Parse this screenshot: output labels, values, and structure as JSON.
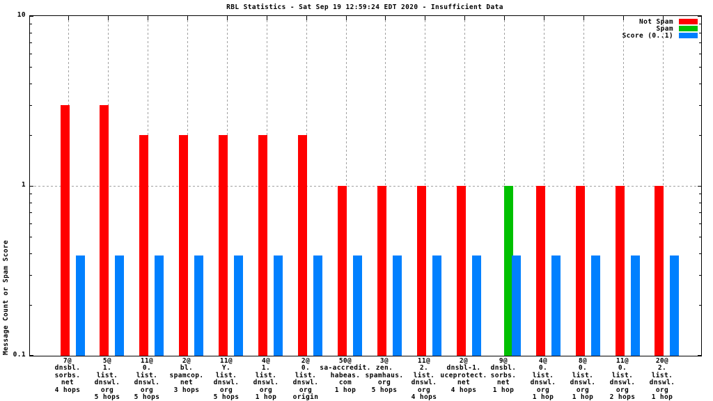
{
  "title": "RBL Statistics - Sat Sep 19 12:59:24 EDT 2020 - Insufficient Data",
  "status_note": "Insufficient Data",
  "y_axis": {
    "label": "Message Count or Spam Score",
    "scale": "log",
    "tick_labels": [
      {
        "label": "10",
        "value": 10
      },
      {
        "label": "1",
        "value": 1
      },
      {
        "label": "0.1",
        "value": 0.1
      }
    ]
  },
  "legend": {
    "position": "top-right-inside",
    "entries": [
      {
        "label": "Not Spam",
        "color": "#ff0000"
      },
      {
        "label": "Spam",
        "color": "#00c000"
      },
      {
        "label": "Score (0..1)",
        "color": "#0080ff"
      }
    ]
  },
  "colors": {
    "not_spam": "#ff0000",
    "spam": "#00c000",
    "score": "#0080ff",
    "grid": "#a0a0a0",
    "axis": "#000000",
    "background": "#ffffff"
  },
  "chart_data": {
    "type": "bar",
    "title": "RBL Statistics - Sat Sep 19 12:59:24 EDT 2020 - Insufficient Data",
    "xlabel": "",
    "ylabel": "Message Count or Spam Score",
    "y_scale": "log",
    "ylim": [
      0.1,
      10
    ],
    "grid": true,
    "legend_position": "top-right-inside",
    "y_major_ticks": [
      0.1,
      1,
      10
    ],
    "y_minor_ticks": [
      0.2,
      0.3,
      0.4,
      0.5,
      0.6,
      0.7,
      0.8,
      0.9,
      2,
      3,
      4,
      5,
      6,
      7,
      8,
      9
    ],
    "categories": [
      [
        "7@",
        "dnsbl.",
        "sorbs.",
        "net",
        "4 hops"
      ],
      [
        "5@",
        "1.",
        "list.",
        "dnswl.",
        "org",
        "5 hops"
      ],
      [
        "11@",
        "0.",
        "list.",
        "dnswl.",
        "org",
        "5 hops"
      ],
      [
        "2@",
        "bl.",
        "spamcop.",
        "net",
        "3 hops"
      ],
      [
        "11@",
        "Y.",
        "list.",
        "dnswl.",
        "org",
        "5 hops"
      ],
      [
        "4@",
        "1.",
        "list.",
        "dnswl.",
        "org",
        "1 hop"
      ],
      [
        "2@",
        "0.",
        "list.",
        "dnswl.",
        "org",
        "origin"
      ],
      [
        "50@",
        "sa-accredit.",
        "habeas.",
        "com",
        "1 hop"
      ],
      [
        "3@",
        "zen.",
        "spamhaus.",
        "org",
        "5 hops"
      ],
      [
        "11@",
        "2.",
        "list.",
        "dnswl.",
        "org",
        "4 hops"
      ],
      [
        "2@",
        "dnsbl-1.",
        "uceprotect.",
        "net",
        "4 hops"
      ],
      [
        "9@",
        "dnsbl.",
        "sorbs.",
        "net",
        "1 hop"
      ],
      [
        "4@",
        "0.",
        "list.",
        "dnswl.",
        "org",
        "1 hop"
      ],
      [
        "8@",
        "0.",
        "list.",
        "dnswl.",
        "org",
        "1 hop"
      ],
      [
        "11@",
        "0.",
        "list.",
        "dnswl.",
        "org",
        "2 hops"
      ],
      [
        "20@",
        "2.",
        "list.",
        "dnswl.",
        "org",
        "1 hop"
      ]
    ],
    "series": [
      {
        "name": "Not Spam",
        "color": "#ff0000",
        "values": [
          3,
          3,
          2,
          2,
          2,
          2,
          2,
          1,
          1,
          1,
          1,
          null,
          1,
          1,
          1,
          1
        ]
      },
      {
        "name": "Spam",
        "color": "#00c000",
        "values": [
          null,
          null,
          null,
          null,
          null,
          null,
          null,
          null,
          null,
          null,
          null,
          1,
          null,
          null,
          null,
          null
        ]
      },
      {
        "name": "Score (0..1)",
        "color": "#0080ff",
        "values": [
          0.39,
          0.39,
          0.39,
          0.39,
          0.39,
          0.39,
          0.39,
          0.39,
          0.39,
          0.39,
          0.39,
          0.39,
          0.39,
          0.39,
          0.39,
          0.39
        ]
      }
    ]
  }
}
